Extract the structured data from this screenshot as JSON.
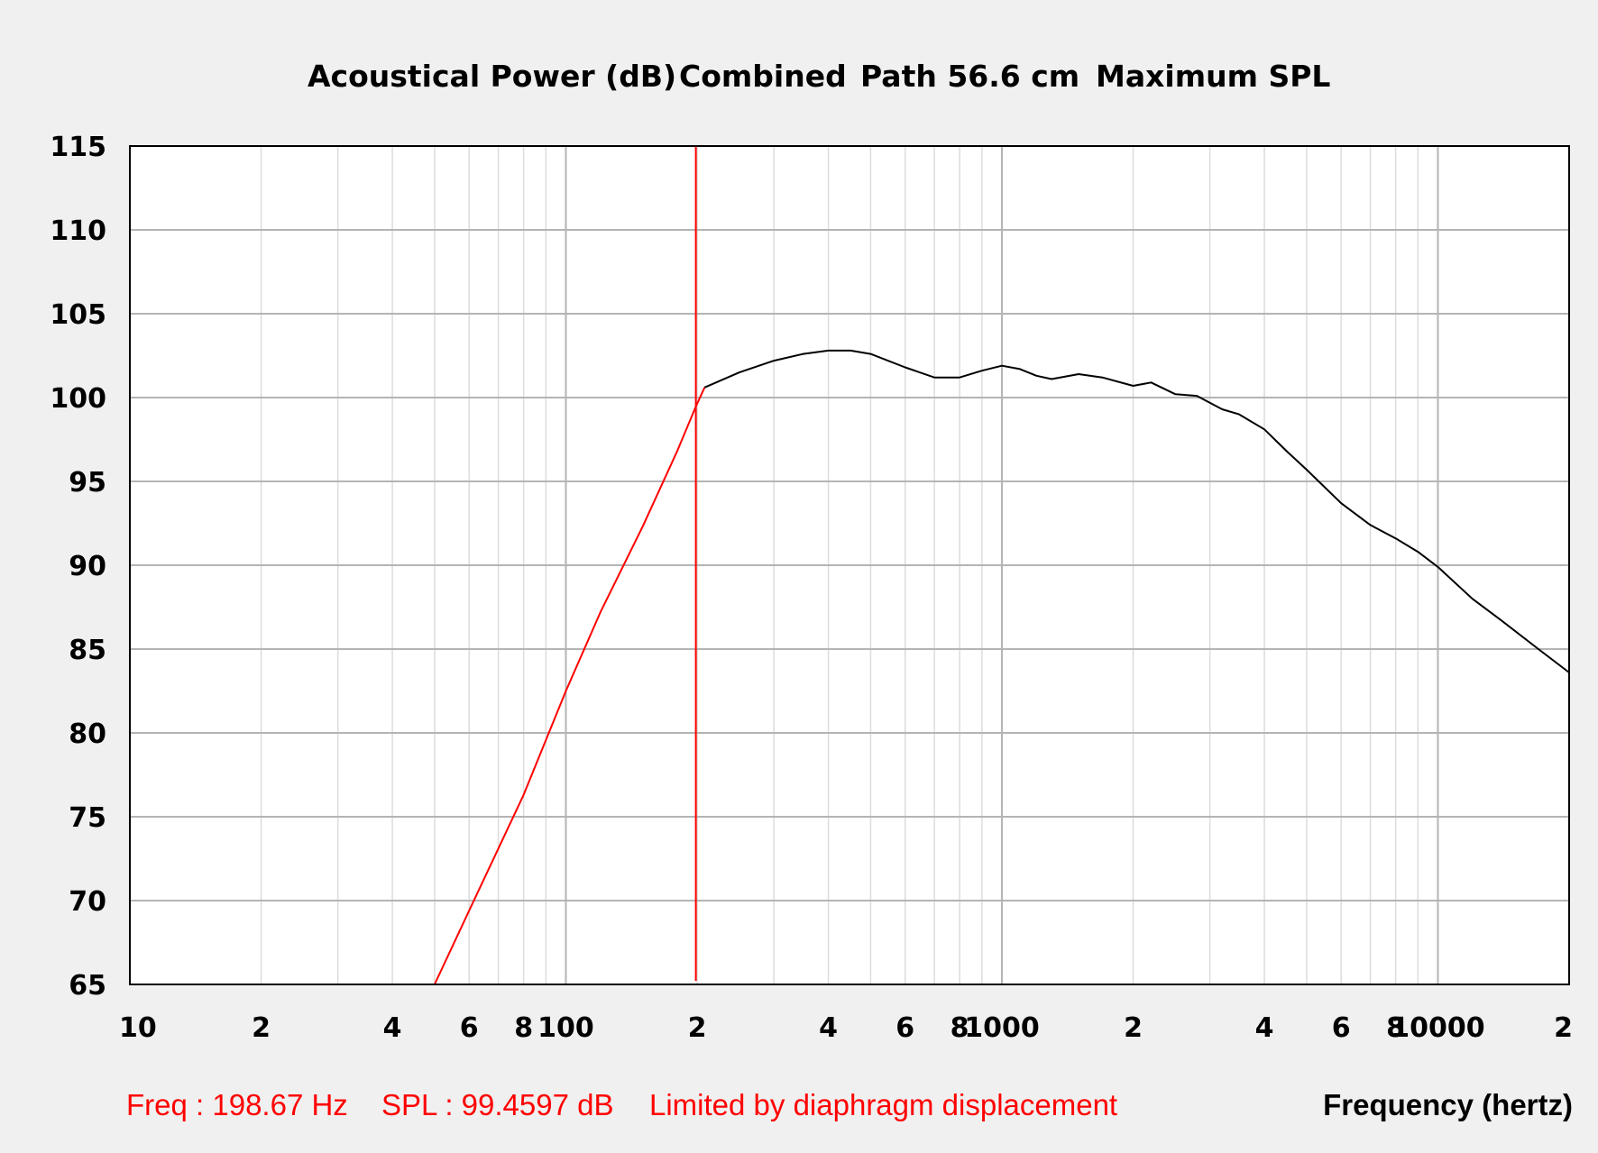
{
  "chart_data": {
    "type": "line",
    "title_parts": [
      "Acoustical Power (dB)",
      "Combined",
      "Path 56.6 cm",
      "Maximum SPL"
    ],
    "xlabel": "Frequency (hertz)",
    "xscale": "log",
    "xlim": [
      10,
      20000
    ],
    "ylim": [
      65,
      115
    ],
    "grid": true,
    "yticks": [
      65,
      70,
      75,
      80,
      85,
      90,
      95,
      100,
      105,
      110,
      115
    ],
    "xticks": [
      {
        "value": 10,
        "label": "10"
      },
      {
        "value": 20,
        "label": "2"
      },
      {
        "value": 40,
        "label": "4"
      },
      {
        "value": 60,
        "label": "6"
      },
      {
        "value": 80,
        "label": "8"
      },
      {
        "value": 100,
        "label": "100"
      },
      {
        "value": 200,
        "label": "2"
      },
      {
        "value": 400,
        "label": "4"
      },
      {
        "value": 600,
        "label": "6"
      },
      {
        "value": 800,
        "label": "8"
      },
      {
        "value": 1000,
        "label": "1000"
      },
      {
        "value": 2000,
        "label": "2"
      },
      {
        "value": 4000,
        "label": "4"
      },
      {
        "value": 6000,
        "label": "6"
      },
      {
        "value": 8000,
        "label": "8"
      },
      {
        "value": 10000,
        "label": "10000"
      },
      {
        "value": 20000,
        "label": "2"
      }
    ],
    "colors": {
      "limited_segment": "#ff0000",
      "response": "#000000",
      "cursor": "#ff0000",
      "grid_major": "#b4b4b4",
      "grid_minor": "#dcdcdc"
    },
    "series": [
      {
        "segment": "limited",
        "x": [
          50,
          60,
          80,
          100,
          120,
          150,
          180,
          198.67,
          208
        ],
        "y": [
          65.0,
          69.4,
          76.3,
          82.5,
          87.2,
          92.3,
          96.8,
          99.46,
          100.6
        ]
      },
      {
        "segment": "normal",
        "x": [
          208,
          250,
          300,
          350,
          400,
          450,
          500,
          600,
          700,
          800,
          900,
          1000,
          1100,
          1200,
          1300,
          1500,
          1700,
          2000,
          2200,
          2500,
          2800,
          3200,
          3500,
          4000,
          4500,
          5000,
          6000,
          7000,
          8000,
          9000,
          10000,
          12000,
          14000,
          17000,
          20000
        ],
        "y": [
          100.6,
          101.5,
          102.2,
          102.6,
          102.8,
          102.8,
          102.6,
          101.8,
          101.2,
          101.2,
          101.6,
          101.9,
          101.7,
          101.3,
          101.1,
          101.4,
          101.2,
          100.7,
          100.9,
          100.2,
          100.1,
          99.3,
          99.0,
          98.1,
          96.8,
          95.7,
          93.7,
          92.4,
          91.6,
          90.8,
          89.9,
          88.0,
          86.7,
          85.0,
          83.6
        ]
      }
    ],
    "cursor": {
      "freq": 198.67,
      "spl": 99.4597
    }
  },
  "status": {
    "freq": "Freq : 198.67 Hz",
    "spl": "SPL : 99.4597 dB",
    "message": "Limited by diaphragm displacement"
  }
}
